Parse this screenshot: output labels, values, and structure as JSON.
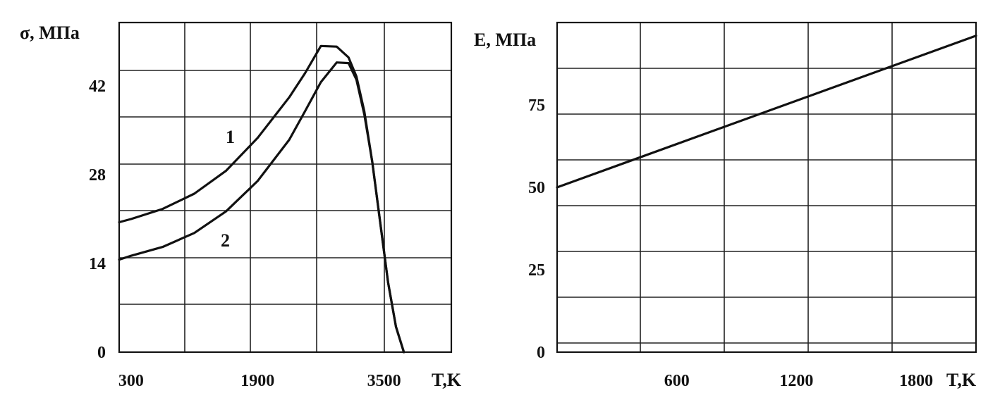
{
  "chart_data": [
    {
      "type": "line",
      "ylabel": "σ, МПа",
      "xlabel": "T,K",
      "x_ticks": [
        300,
        1900,
        3500
      ],
      "y_ticks": [
        0,
        14,
        28,
        42
      ],
      "xlim": [
        150,
        4350
      ],
      "ylim": [
        0,
        52
      ],
      "grid": true,
      "series": [
        {
          "name": "1",
          "x": [
            150,
            300,
            700,
            1100,
            1500,
            1900,
            2300,
            2500,
            2700,
            2900,
            3050,
            3150,
            3250,
            3350,
            3450,
            3550,
            3650,
            3750
          ],
          "y": [
            20.5,
            21.0,
            22.6,
            25.0,
            28.6,
            33.8,
            40.2,
            44.0,
            48.3,
            48.2,
            46.5,
            43.5,
            38.0,
            30.0,
            20.5,
            11.0,
            4.0,
            0.0
          ]
        },
        {
          "name": "2",
          "x": [
            150,
            300,
            700,
            1100,
            1500,
            1900,
            2300,
            2500,
            2700,
            2900,
            3050,
            3150,
            3250,
            3350,
            3450,
            3550,
            3650,
            3750
          ],
          "y": [
            14.6,
            15.2,
            16.6,
            18.8,
            22.2,
            27.0,
            33.5,
            38.0,
            42.6,
            45.7,
            45.6,
            43.0,
            37.5,
            30.0,
            20.5,
            11.0,
            4.0,
            0.0
          ]
        }
      ]
    },
    {
      "type": "line",
      "ylabel": "E, МПа",
      "xlabel": "T,K",
      "x_ticks": [
        600,
        1200,
        1800
      ],
      "y_ticks": [
        0,
        25,
        50,
        75
      ],
      "xlim": [
        0,
        2100
      ],
      "ylim": [
        0,
        100
      ],
      "grid": true,
      "series": [
        {
          "x": [
            0,
            2100
          ],
          "y": [
            50,
            96
          ]
        }
      ]
    }
  ]
}
